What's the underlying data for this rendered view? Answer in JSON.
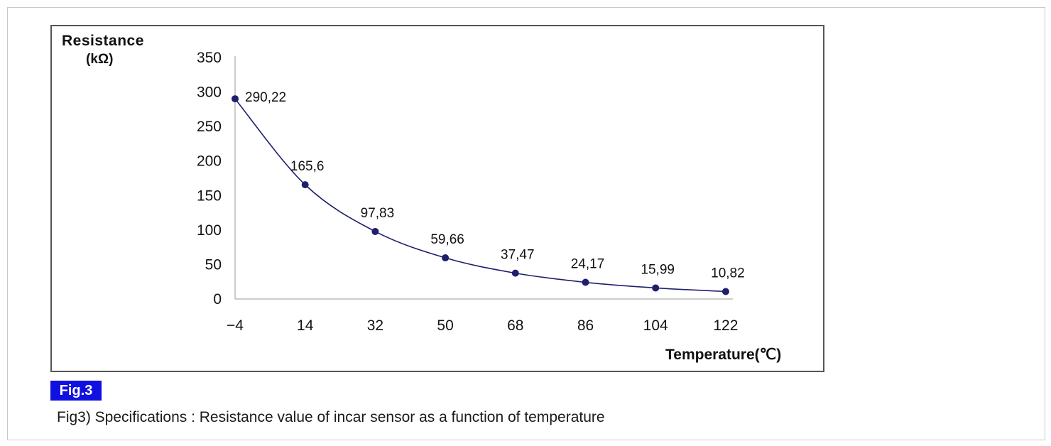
{
  "chart_data": {
    "type": "line",
    "ylabel": "Resistance",
    "yunit": "(kΩ)",
    "xlabel": "Temperature(℃)",
    "x": [
      -4,
      14,
      32,
      50,
      68,
      86,
      104,
      122
    ],
    "x_tick_labels": [
      "−4",
      "14",
      "32",
      "50",
      "68",
      "86",
      "104",
      "122"
    ],
    "y_ticks": [
      0,
      50,
      100,
      150,
      200,
      250,
      300,
      350
    ],
    "ylim": [
      0,
      350
    ],
    "series": [
      {
        "values": [
          290.22,
          165.6,
          97.83,
          59.66,
          37.47,
          24.17,
          15.99,
          10.82
        ],
        "data_labels": [
          "290,22",
          "165,6",
          "97,83",
          "59,66",
          "37,47",
          "24,17",
          "15,99",
          "10,82"
        ],
        "color": "#1f1f6e"
      }
    ],
    "grid": false,
    "smooth": true
  },
  "figure": {
    "badge": "Fig.3",
    "caption": "Fig3) Specifications : Resistance value of incar sensor as a function of temperature"
  },
  "colors": {
    "badge": "#1010e0",
    "series": "#1f1f6e",
    "frame": "#555555"
  }
}
